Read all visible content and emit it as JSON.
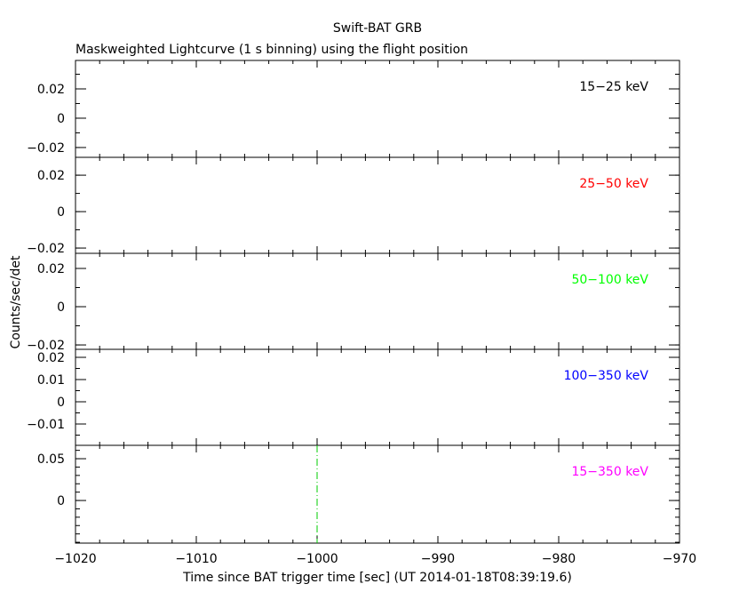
{
  "chart_data": {
    "type": "line",
    "title": "Swift-BAT GRB",
    "subtitle": "Maskweighted Lightcurve (1 s binning) using the flight position",
    "xlabel": "Time since BAT trigger time [sec] (UT 2014-01-18T08:39:19.6)",
    "ylabel": "Counts/sec/det",
    "xlim": [
      -1020,
      -970
    ],
    "xticks": [
      -1020,
      -1010,
      -1000,
      -990,
      -980,
      -970
    ],
    "xtick_labels": [
      "−1020",
      "−1010",
      "−1000",
      "−990",
      "−980",
      "−970"
    ],
    "marker_line_x": -1000,
    "marker_line_color": "#00cc00",
    "grid": false,
    "panels": [
      {
        "label": "15−25 keV",
        "color": "#000000",
        "ylim": [
          -0.0267,
          0.0394
        ],
        "yticks": [
          0.02,
          0,
          -0.02
        ],
        "ytick_labels": [
          "0.02",
          "0",
          "−0.02"
        ],
        "minor": 0.01,
        "series": []
      },
      {
        "label": "25−50 keV",
        "color": "#ff0000",
        "ylim": [
          -0.0229,
          0.0298
        ],
        "yticks": [
          0.02,
          0,
          -0.02
        ],
        "ytick_labels": [
          "0.02",
          "0",
          "−0.02"
        ],
        "minor": 0.01,
        "series": []
      },
      {
        "label": "50−100 keV",
        "color": "#00ff00",
        "ylim": [
          -0.0223,
          0.0279
        ],
        "yticks": [
          0.02,
          0,
          -0.02
        ],
        "ytick_labels": [
          "0.02",
          "0",
          "−0.02"
        ],
        "minor": 0.01,
        "series": []
      },
      {
        "label": "100−350 keV",
        "color": "#0000ff",
        "ylim": [
          -0.0196,
          0.0236
        ],
        "yticks": [
          0.02,
          0.01,
          0,
          -0.01
        ],
        "ytick_labels": [
          "0.02",
          "0.01",
          "0",
          "−0.01"
        ],
        "minor": 0.005,
        "series": []
      },
      {
        "label": "15−350 keV",
        "color": "#ff00ff",
        "ylim": [
          -0.051,
          0.066
        ],
        "yticks": [
          0.05,
          0
        ],
        "ytick_labels": [
          "0.05",
          "0"
        ],
        "minor": 0.01,
        "series": []
      }
    ]
  }
}
